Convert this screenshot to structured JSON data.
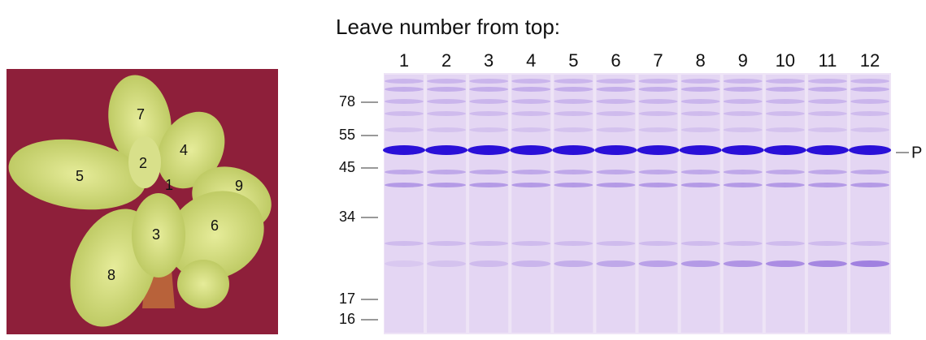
{
  "photo": {
    "leaf_labels": [
      "7",
      "2",
      "4",
      "5",
      "1",
      "9",
      "3",
      "6",
      "8"
    ]
  },
  "gel": {
    "title": "Leave number from top:",
    "lanes": [
      "1",
      "2",
      "3",
      "4",
      "5",
      "6",
      "7",
      "8",
      "9",
      "10",
      "11",
      "12"
    ],
    "markers": [
      "78",
      "55",
      "45",
      "34",
      "17",
      "16"
    ],
    "band_label": "P"
  }
}
